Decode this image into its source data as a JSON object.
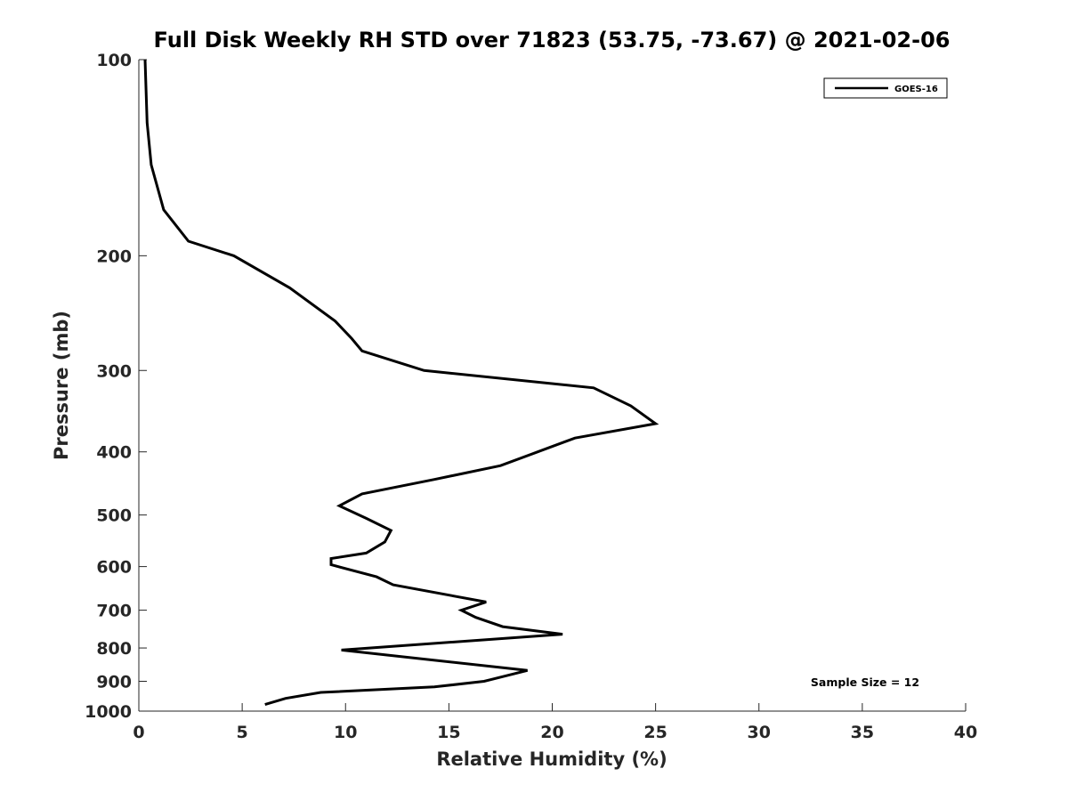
{
  "chart_data": {
    "type": "line",
    "title": "Full Disk Weekly RH STD over 71823 (53.75, -73.67) @ 2021-02-06",
    "xlabel": "Relative Humidity (%)",
    "ylabel": "Pressure (mb)",
    "xlim": [
      0,
      40
    ],
    "ylim": [
      100,
      1000
    ],
    "y_scale": "log",
    "y_reversed": true,
    "x_ticks": [
      "0",
      "5",
      "10",
      "15",
      "20",
      "25",
      "30",
      "35",
      "40"
    ],
    "y_ticks": [
      "100",
      "200",
      "300",
      "400",
      "500",
      "600",
      "700",
      "800",
      "900",
      "1000"
    ],
    "grid": false,
    "legend": {
      "position": "top-right",
      "entries": [
        "GOES-16"
      ]
    },
    "annotation": "Sample Size = 12",
    "series": [
      {
        "name": "GOES-16",
        "color": "#000000",
        "points": [
          [
            0.3,
            100
          ],
          [
            0.4,
            125
          ],
          [
            0.6,
            145
          ],
          [
            1.2,
            170
          ],
          [
            2.4,
            190
          ],
          [
            4.6,
            200
          ],
          [
            7.3,
            224
          ],
          [
            9.5,
            252
          ],
          [
            10.3,
            268
          ],
          [
            10.8,
            280
          ],
          [
            13.8,
            300
          ],
          [
            22.0,
            319
          ],
          [
            23.8,
            340
          ],
          [
            25.0,
            362
          ],
          [
            21.1,
            381
          ],
          [
            19.3,
            400
          ],
          [
            17.5,
            420
          ],
          [
            14.3,
            441
          ],
          [
            10.8,
            464
          ],
          [
            9.7,
            484
          ],
          [
            11.0,
            506
          ],
          [
            12.2,
            528
          ],
          [
            11.9,
            550
          ],
          [
            11.0,
            572
          ],
          [
            9.3,
            583
          ],
          [
            9.3,
            596
          ],
          [
            11.5,
            622
          ],
          [
            12.3,
            640
          ],
          [
            16.8,
            680
          ],
          [
            15.6,
            700
          ],
          [
            16.3,
            718
          ],
          [
            17.6,
            742
          ],
          [
            20.5,
            762
          ],
          [
            9.8,
            806
          ],
          [
            18.8,
            866
          ],
          [
            16.7,
            900
          ],
          [
            14.3,
            918
          ],
          [
            8.8,
            936
          ],
          [
            7.1,
            956
          ],
          [
            6.1,
            977
          ]
        ]
      }
    ]
  }
}
